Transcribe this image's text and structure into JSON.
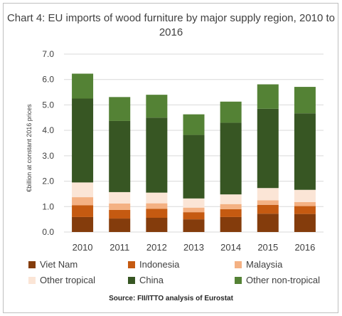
{
  "chart_data": {
    "type": "bar",
    "stacked": true,
    "title": "Chart 4: EU imports of wood furniture by major supply region, 2010 to 2016",
    "ylabel": "€billion at constant 2016 prices",
    "xlabel": "",
    "ylim": [
      0,
      7.0
    ],
    "yticks": [
      "0.0",
      "1.0",
      "2.0",
      "3.0",
      "4.0",
      "5.0",
      "6.0",
      "7.0"
    ],
    "grid": true,
    "legend_position": "bottom",
    "categories": [
      "2010",
      "2011",
      "2012",
      "2013",
      "2014",
      "2015",
      "2016"
    ],
    "series": [
      {
        "name": "Viet Nam",
        "color": "#843c0c",
        "values": [
          0.59,
          0.53,
          0.56,
          0.5,
          0.59,
          0.72,
          0.71
        ]
      },
      {
        "name": "Indonesia",
        "color": "#c55a11",
        "values": [
          0.46,
          0.34,
          0.35,
          0.28,
          0.31,
          0.35,
          0.31
        ]
      },
      {
        "name": "Malaysia",
        "color": "#f4b183",
        "values": [
          0.32,
          0.25,
          0.22,
          0.18,
          0.2,
          0.18,
          0.16
        ]
      },
      {
        "name": "Other tropical",
        "color": "#fbe5d6",
        "values": [
          0.58,
          0.45,
          0.42,
          0.36,
          0.38,
          0.48,
          0.48
        ]
      },
      {
        "name": "China",
        "color": "#375623",
        "values": [
          3.3,
          2.8,
          2.95,
          2.5,
          2.82,
          3.12,
          3.01
        ]
      },
      {
        "name": "Other non-tropical",
        "color": "#548235",
        "values": [
          0.98,
          0.94,
          0.9,
          0.81,
          0.83,
          0.96,
          1.04
        ]
      }
    ],
    "source": "Source: FII/ITTO analysis of Eurostat"
  }
}
